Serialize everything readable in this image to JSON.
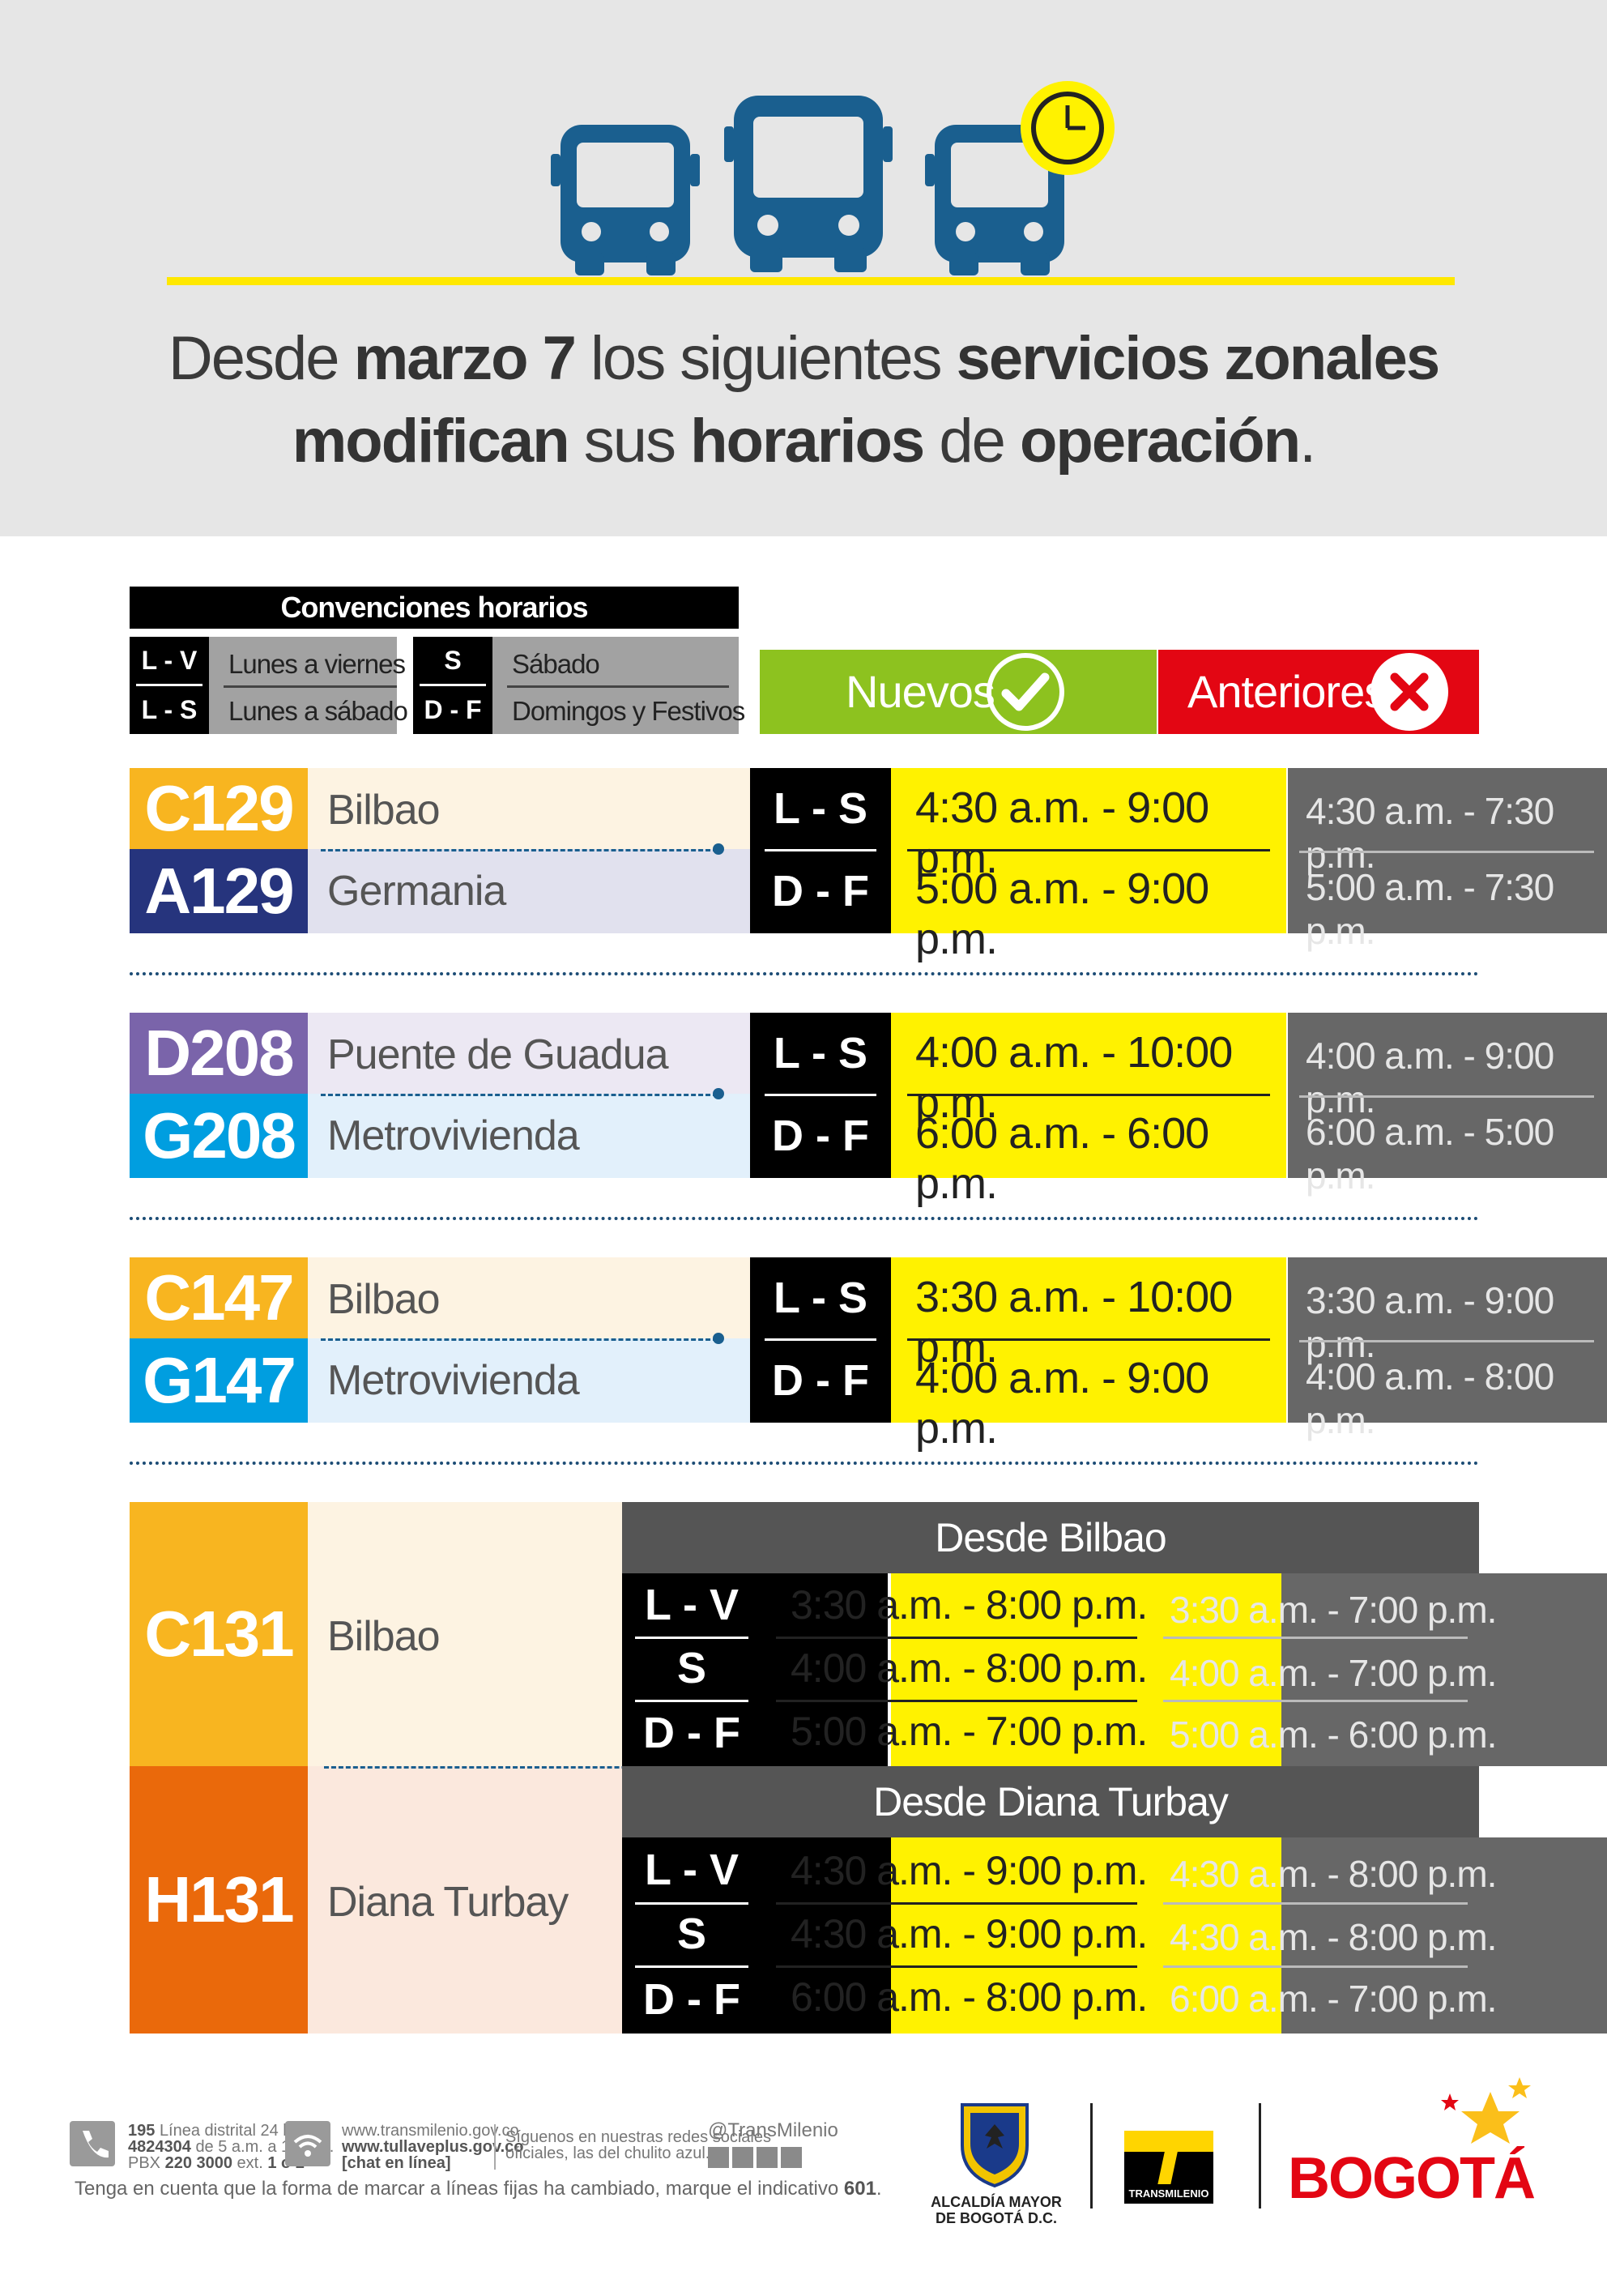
{
  "header": {
    "headline_parts": [
      "Desde ",
      "marzo 7",
      " los siguientes ",
      "servicios zonales"
    ],
    "headline_parts2": [
      "modifican",
      " sus ",
      "horarios",
      " de ",
      "operación",
      "."
    ]
  },
  "conventions": {
    "title": "Convenciones horarios",
    "lv": "L - V",
    "lv_label": "Lunes a viernes",
    "ls": "L - S",
    "ls_label": "Lunes a sábado",
    "s": "S",
    "s_label": "Sábado",
    "df": "D - F",
    "df_label": "Domingos y Festivos"
  },
  "legend": {
    "new": "Nuevos",
    "old": "Anteriores",
    "new_color": "#8dc21f",
    "old_color": "#e30613"
  },
  "routes": [
    {
      "code1": "C129",
      "dest1": "Bilbao",
      "color1": "#f8b520",
      "bg1": "#fdf3e2",
      "code2": "A129",
      "dest2": "Germania",
      "color2": "#26347d",
      "bg2": "#e1e1ee",
      "day1": "L - S",
      "new1": "4:30 a.m. - 9:00 p.m.",
      "old1": "4:30 a.m. - 7:30 p.m.",
      "day2": "D - F",
      "new2": "5:00 a.m. - 9:00 p.m.",
      "old2": "5:00 a.m. - 7:30 p.m."
    },
    {
      "code1": "D208",
      "dest1": "Puente de Guadua",
      "color1": "#7a64aa",
      "bg1": "#ece8f3",
      "code2": "G208",
      "dest2": "Metrovivienda",
      "color2": "#009ee0",
      "bg2": "#e2f0fb",
      "day1": "L - S",
      "new1": "4:00 a.m. - 10:00 p.m.",
      "old1": "4:00 a.m. - 9:00 p.m.",
      "day2": "D - F",
      "new2": "6:00 a.m. - 6:00 p.m.",
      "old2": "6:00 a.m. - 5:00 p.m."
    },
    {
      "code1": "C147",
      "dest1": "Bilbao",
      "color1": "#f8b520",
      "bg1": "#fdf3e2",
      "code2": "G147",
      "dest2": "Metrovivienda",
      "color2": "#009ee0",
      "bg2": "#e2f0fb",
      "day1": "L - S",
      "new1": "3:30 a.m. - 10:00 p.m.",
      "old1": "3:30 a.m. - 9:00 p.m.",
      "day2": "D - F",
      "new2": "4:00 a.m. - 9:00 p.m.",
      "old2": "4:00 a.m. - 8:00 p.m."
    }
  ],
  "route131": {
    "code1": "C131",
    "dest1": "Bilbao",
    "color1": "#f8b520",
    "bg1": "#fdf3e2",
    "code2": "H131",
    "dest2": "Diana Turbay",
    "color2": "#ea690b",
    "bg2": "#fbe8dd",
    "sub1": "Desde Bilbao",
    "sub2": "Desde Diana Turbay",
    "rows1": [
      {
        "day": "L - V",
        "new": "3:30 a.m. - 8:00 p.m.",
        "old": "3:30 a.m. - 7:00 p.m."
      },
      {
        "day": "S",
        "new": "4:00 a.m. - 8:00 p.m.",
        "old": "4:00 a.m. - 7:00 p.m."
      },
      {
        "day": "D - F",
        "new": "5:00 a.m. - 7:00 p.m.",
        "old": "5:00 a.m. - 6:00 p.m."
      }
    ],
    "rows2": [
      {
        "day": "L - V",
        "new": "4:30 a.m. - 9:00 p.m.",
        "old": "4:30 a.m. - 8:00 p.m."
      },
      {
        "day": "S",
        "new": "4:30 a.m. - 9:00 p.m.",
        "old": "4:30 a.m. - 8:00 p.m."
      },
      {
        "day": "D - F",
        "new": "6:00 a.m. - 8:00 p.m.",
        "old": "6:00 a.m. - 7:00 p.m."
      }
    ]
  },
  "footer": {
    "phone1": "195",
    "phone1_text": "Línea distrital 24 horas",
    "phone2": "4824304",
    "phone2_text": "de 5 a.m. a 11 p.m.",
    "pbx": "PBX ",
    "pbx_num": "220 3000",
    "pbx_ext": " ext. ",
    "pbx_ext_num": "1 o 2",
    "web1": "www.transmilenio.gov.co",
    "web2": "www.tullaveplus.gov.co",
    "web3": "[chat en línea]",
    "social1": "Síguenos en nuestras redes sociales",
    "social2": "oficiales, las del chulito azul.",
    "handle": "@TransMilenio",
    "notice": "Tenga en cuenta que la forma de marcar a líneas fijas ha cambiado, marque el indicativo ",
    "notice_code": "601",
    "alcaldia1": "ALCALDÍA MAYOR",
    "alcaldia2": "DE BOGOTÁ D.C.",
    "tm": "TRANSMILENIO",
    "bogota": "BOGOTÁ"
  }
}
